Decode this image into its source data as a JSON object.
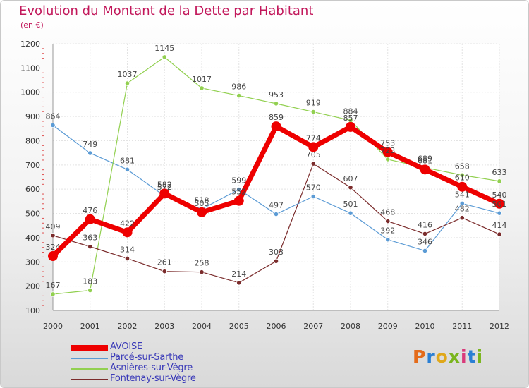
{
  "header": {
    "title": "Evolution du Montant de la Dette par Habitant",
    "subtitle": "(en €)"
  },
  "logo": {
    "letters": [
      "P",
      "r",
      "o",
      "x",
      "i",
      "t",
      "i"
    ],
    "colors": [
      "#e46b1a",
      "#2a7fd4",
      "#e0a81a",
      "#7ab51d",
      "#d93a7a",
      "#2a7fd4",
      "#7ab51d"
    ]
  },
  "chart_data": {
    "type": "line",
    "title": "Evolution du Montant de la Dette par Habitant",
    "subtitle": "(en €)",
    "xlabel": "",
    "ylabel": "",
    "x": [
      "2000",
      "2001",
      "2002",
      "2003",
      "2004",
      "2005",
      "2006",
      "2007",
      "2008",
      "2009",
      "2010",
      "2011",
      "2012"
    ],
    "ylim": [
      100,
      1200
    ],
    "yticks": [
      100,
      200,
      300,
      400,
      500,
      600,
      700,
      800,
      900,
      1000,
      1100,
      1200
    ],
    "grid": true,
    "legend_position": "bottom-left",
    "series": [
      {
        "name": "AVOISE",
        "color": "#ee0000",
        "values": [
          324,
          476,
          422,
          582,
          505,
          552,
          859,
          774,
          857,
          753,
          681,
          610,
          540
        ]
      },
      {
        "name": "Parcé-sur-Sarthe",
        "color": "#5b9bd5",
        "values": [
          864,
          749,
          681,
          572,
          518,
          599,
          497,
          570,
          501,
          392,
          346,
          541,
          501
        ]
      },
      {
        "name": "Asnières-sur-Vègre",
        "color": "#92d050",
        "values": [
          167,
          183,
          1037,
          1145,
          1017,
          986,
          953,
          919,
          884,
          723,
          689,
          658,
          633
        ]
      },
      {
        "name": "Fontenay-sur-Vègre",
        "color": "#7b2c2c",
        "values": [
          409,
          363,
          314,
          261,
          258,
          214,
          303,
          705,
          607,
          468,
          416,
          482,
          414
        ]
      }
    ]
  }
}
